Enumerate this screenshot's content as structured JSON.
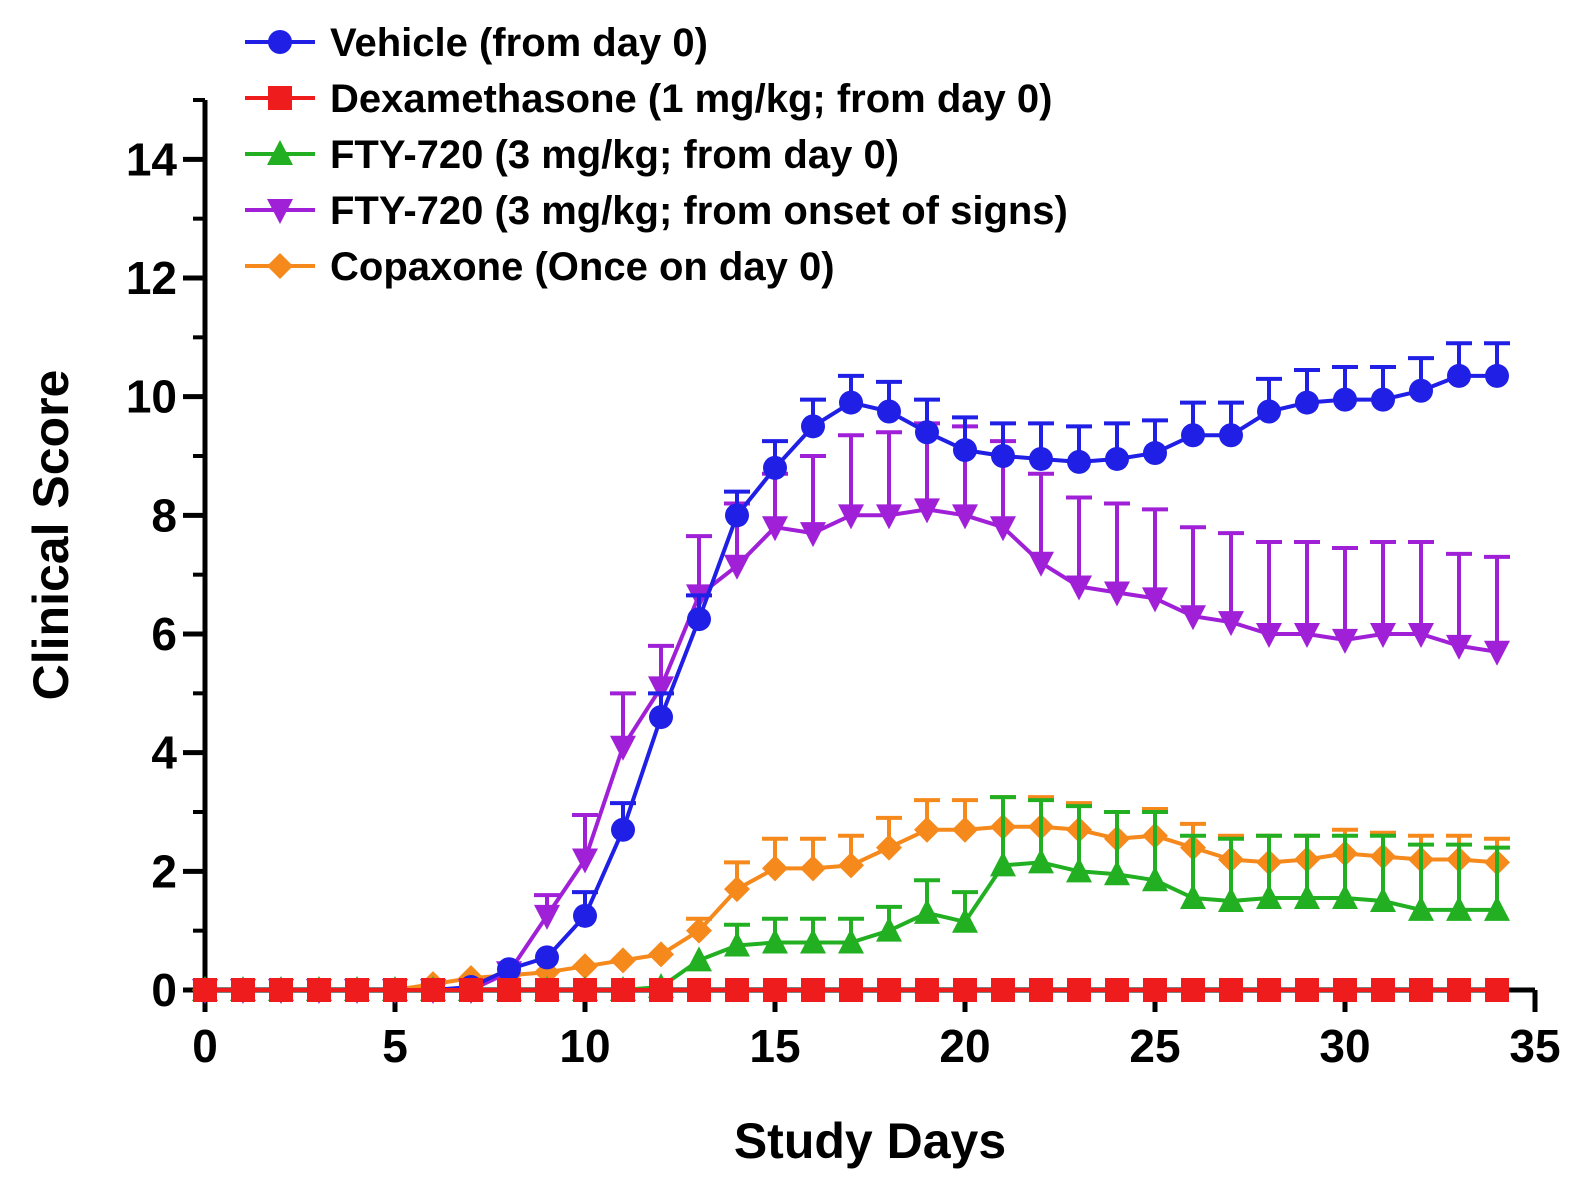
{
  "chart_data": {
    "type": "line",
    "title": "",
    "xlabel": "Study Days",
    "ylabel": "Clinical Score",
    "xlim": [
      0,
      35
    ],
    "ylim": [
      0,
      15
    ],
    "xticks": [
      "0",
      "5",
      "10",
      "15",
      "20",
      "25",
      "30",
      "35"
    ],
    "yticks": [
      "0",
      "2",
      "4",
      "6",
      "8",
      "10",
      "12",
      "14"
    ],
    "grid": false,
    "legend_position": "top-left",
    "x": [
      0,
      1,
      2,
      3,
      4,
      5,
      6,
      7,
      8,
      9,
      10,
      11,
      12,
      13,
      14,
      15,
      16,
      17,
      18,
      19,
      20,
      21,
      22,
      23,
      24,
      25,
      26,
      27,
      28,
      29,
      30,
      31,
      32,
      33,
      34
    ],
    "series": [
      {
        "name": "Vehicle (from day 0)",
        "color": "#1f1fe6",
        "marker": "circle",
        "values": [
          0,
          0,
          0,
          0,
          0,
          0,
          0,
          0.05,
          0.35,
          0.55,
          1.25,
          2.7,
          4.6,
          6.25,
          8.0,
          8.8,
          9.5,
          9.9,
          9.75,
          9.4,
          9.1,
          9.0,
          8.95,
          8.9,
          8.95,
          9.05,
          9.35,
          9.35,
          9.75,
          9.9,
          9.95,
          9.95,
          10.1,
          10.35,
          10.35
        ],
        "errors": [
          0,
          0,
          0,
          0,
          0,
          0,
          0,
          0,
          0,
          0,
          0.4,
          0.45,
          0.4,
          0.4,
          0.4,
          0.45,
          0.45,
          0.45,
          0.5,
          0.55,
          0.55,
          0.55,
          0.6,
          0.6,
          0.6,
          0.55,
          0.55,
          0.55,
          0.55,
          0.55,
          0.55,
          0.55,
          0.55,
          0.55,
          0.55
        ]
      },
      {
        "name": "Dexamethasone (1 mg/kg; from day 0)",
        "color": "#ee1c1c",
        "marker": "square",
        "values": [
          0,
          0,
          0,
          0,
          0,
          0,
          0,
          0,
          0,
          0,
          0,
          0,
          0,
          0,
          0,
          0,
          0,
          0,
          0,
          0,
          0,
          0,
          0,
          0,
          0,
          0,
          0,
          0,
          0,
          0,
          0,
          0,
          0,
          0,
          0
        ],
        "errors": [
          0,
          0,
          0,
          0,
          0,
          0,
          0,
          0,
          0,
          0,
          0,
          0,
          0,
          0,
          0,
          0,
          0,
          0,
          0,
          0,
          0,
          0,
          0,
          0,
          0,
          0,
          0,
          0,
          0,
          0,
          0,
          0,
          0,
          0,
          0
        ]
      },
      {
        "name": "FTY-720 (3 mg/kg; from day 0)",
        "color": "#22b022",
        "marker": "triangle-up",
        "values": [
          0,
          0,
          0,
          0,
          0,
          0,
          0,
          0,
          0,
          0,
          0,
          0,
          0.05,
          0.5,
          0.75,
          0.8,
          0.8,
          0.8,
          1.0,
          1.3,
          1.15,
          2.1,
          2.15,
          2.0,
          1.95,
          1.85,
          1.55,
          1.5,
          1.55,
          1.55,
          1.55,
          1.5,
          1.35,
          1.35,
          1.35
        ],
        "errors": [
          0,
          0,
          0,
          0,
          0,
          0,
          0,
          0,
          0,
          0,
          0,
          0,
          0,
          0,
          0.35,
          0.4,
          0.4,
          0.4,
          0.4,
          0.55,
          0.5,
          1.15,
          1.05,
          1.1,
          1.05,
          1.15,
          1.05,
          1.05,
          1.05,
          1.05,
          1.05,
          1.1,
          1.1,
          1.1,
          1.05
        ]
      },
      {
        "name": "FTY-720 (3 mg/kg; from onset of signs)",
        "color": "#a020d8",
        "marker": "triangle-down",
        "values": [
          0,
          0,
          0,
          0,
          0,
          0,
          0,
          0,
          0.3,
          1.25,
          2.2,
          4.1,
          5.1,
          6.65,
          7.15,
          7.8,
          7.7,
          8.0,
          8.0,
          8.1,
          8.0,
          7.8,
          7.2,
          6.8,
          6.7,
          6.6,
          6.3,
          6.2,
          6.0,
          6.0,
          5.9,
          6.0,
          6.0,
          5.8,
          5.7
        ],
        "errors": [
          0,
          0,
          0,
          0,
          0,
          0,
          0,
          0,
          0,
          0.35,
          0.75,
          0.9,
          0.7,
          1.0,
          1.05,
          0.9,
          1.3,
          1.35,
          1.4,
          1.45,
          1.5,
          1.45,
          1.5,
          1.5,
          1.5,
          1.5,
          1.5,
          1.5,
          1.55,
          1.55,
          1.55,
          1.55,
          1.55,
          1.55,
          1.6
        ]
      },
      {
        "name": "Copaxone (Once on day 0)",
        "color": "#f5891c",
        "marker": "diamond",
        "values": [
          0,
          0,
          0,
          0,
          0,
          0,
          0.1,
          0.2,
          0.25,
          0.3,
          0.4,
          0.5,
          0.6,
          1.0,
          1.7,
          2.05,
          2.05,
          2.1,
          2.4,
          2.7,
          2.7,
          2.75,
          2.75,
          2.7,
          2.55,
          2.6,
          2.4,
          2.2,
          2.15,
          2.2,
          2.3,
          2.25,
          2.2,
          2.2,
          2.15
        ],
        "errors": [
          0,
          0,
          0,
          0,
          0,
          0,
          0,
          0,
          0,
          0,
          0,
          0,
          0,
          0.2,
          0.45,
          0.5,
          0.5,
          0.5,
          0.5,
          0.5,
          0.5,
          0.5,
          0.5,
          0.45,
          0.45,
          0.45,
          0.4,
          0.4,
          0.45,
          0.4,
          0.4,
          0.4,
          0.4,
          0.4,
          0.4
        ]
      }
    ]
  }
}
